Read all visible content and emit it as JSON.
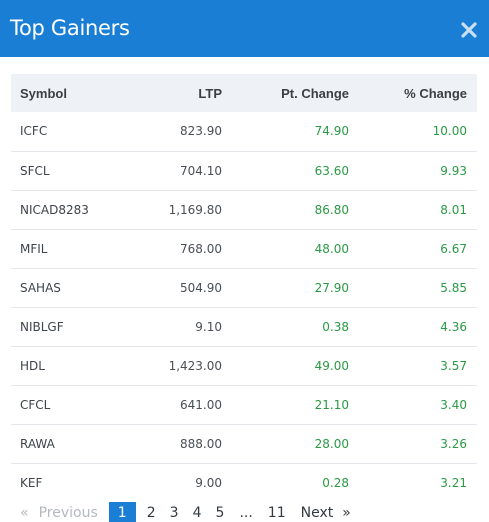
{
  "modal": {
    "title": "Top Gainers"
  },
  "table": {
    "headers": {
      "symbol": "Symbol",
      "ltp": "LTP",
      "pt_change": "Pt. Change",
      "pct_change": "% Change"
    },
    "rows": [
      {
        "symbol": "ICFC",
        "ltp": "823.90",
        "pt_change": "74.90",
        "pct_change": "10.00"
      },
      {
        "symbol": "SFCL",
        "ltp": "704.10",
        "pt_change": "63.60",
        "pct_change": "9.93"
      },
      {
        "symbol": "NICAD8283",
        "ltp": "1,169.80",
        "pt_change": "86.80",
        "pct_change": "8.01"
      },
      {
        "symbol": "MFIL",
        "ltp": "768.00",
        "pt_change": "48.00",
        "pct_change": "6.67"
      },
      {
        "symbol": "SAHAS",
        "ltp": "504.90",
        "pt_change": "27.90",
        "pct_change": "5.85"
      },
      {
        "symbol": "NIBLGF",
        "ltp": "9.10",
        "pt_change": "0.38",
        "pct_change": "4.36"
      },
      {
        "symbol": "HDL",
        "ltp": "1,423.00",
        "pt_change": "49.00",
        "pct_change": "3.57"
      },
      {
        "symbol": "CFCL",
        "ltp": "641.00",
        "pt_change": "21.10",
        "pct_change": "3.40"
      },
      {
        "symbol": "RAWA",
        "ltp": "888.00",
        "pt_change": "28.00",
        "pct_change": "3.26"
      },
      {
        "symbol": "KEF",
        "ltp": "9.00",
        "pt_change": "0.28",
        "pct_change": "3.21"
      }
    ]
  },
  "pagination": {
    "prev_arrow": "«",
    "prev_label": "Previous",
    "pages": [
      "1",
      "2",
      "3",
      "4",
      "5"
    ],
    "ellipsis": "...",
    "last_page": "11",
    "next_label": "Next",
    "next_arrow": "»",
    "current": "1"
  },
  "colors": {
    "header_bg": "#1a7fd4",
    "positive": "#2a9a44",
    "active_page": "#1a7fd4"
  }
}
